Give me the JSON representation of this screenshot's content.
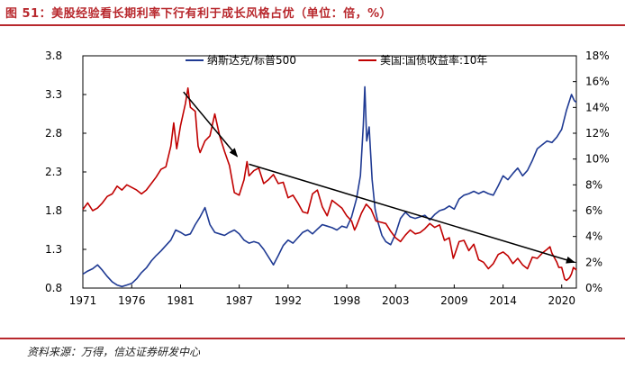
{
  "figure": {
    "title": "图 51：美股经验看长期利率下行有利于成长风格占优（单位：倍，%）",
    "source": "资料来源：万得，信达证券研发中心"
  },
  "colors": {
    "nasdaq": "#1f3a93",
    "treasury": "#c00000",
    "accent": "#b8282d",
    "arrow": "#000000"
  },
  "chart_data": {
    "type": "line",
    "title": "",
    "x_ticks": [
      "1971",
      "1976",
      "1981",
      "1987",
      "1992",
      "1998",
      "2003",
      "2009",
      "2014",
      "2020"
    ],
    "x_range": [
      1971,
      2021.5
    ],
    "y_left": {
      "range": [
        0.8,
        3.8
      ],
      "ticks": [
        "0.8",
        "1.3",
        "1.8",
        "2.3",
        "2.8",
        "3.3",
        "3.8"
      ]
    },
    "y_right": {
      "range": [
        0,
        18
      ],
      "ticks": [
        "0%",
        "2%",
        "4%",
        "6%",
        "8%",
        "10%",
        "12%",
        "14%",
        "16%",
        "18%"
      ]
    },
    "series": [
      {
        "name": "纳斯达克/标普500",
        "axis": "left",
        "points": [
          [
            1971.0,
            0.98
          ],
          [
            1971.5,
            1.02
          ],
          [
            1972.0,
            1.05
          ],
          [
            1972.5,
            1.1
          ],
          [
            1973.0,
            1.03
          ],
          [
            1973.5,
            0.95
          ],
          [
            1974.0,
            0.88
          ],
          [
            1974.5,
            0.84
          ],
          [
            1975.0,
            0.82
          ],
          [
            1975.5,
            0.84
          ],
          [
            1976.0,
            0.86
          ],
          [
            1976.5,
            0.92
          ],
          [
            1977.0,
            1.0
          ],
          [
            1977.5,
            1.06
          ],
          [
            1978.0,
            1.15
          ],
          [
            1978.5,
            1.22
          ],
          [
            1979.0,
            1.28
          ],
          [
            1979.5,
            1.35
          ],
          [
            1980.0,
            1.42
          ],
          [
            1980.5,
            1.55
          ],
          [
            1981.0,
            1.52
          ],
          [
            1981.5,
            1.48
          ],
          [
            1982.0,
            1.5
          ],
          [
            1982.5,
            1.62
          ],
          [
            1983.0,
            1.72
          ],
          [
            1983.5,
            1.84
          ],
          [
            1984.0,
            1.62
          ],
          [
            1984.5,
            1.52
          ],
          [
            1985.0,
            1.5
          ],
          [
            1985.5,
            1.48
          ],
          [
            1986.0,
            1.52
          ],
          [
            1986.5,
            1.55
          ],
          [
            1987.0,
            1.5
          ],
          [
            1987.5,
            1.42
          ],
          [
            1988.0,
            1.38
          ],
          [
            1988.5,
            1.4
          ],
          [
            1989.0,
            1.38
          ],
          [
            1989.5,
            1.3
          ],
          [
            1990.0,
            1.2
          ],
          [
            1990.5,
            1.1
          ],
          [
            1991.0,
            1.22
          ],
          [
            1991.5,
            1.35
          ],
          [
            1992.0,
            1.42
          ],
          [
            1992.5,
            1.38
          ],
          [
            1993.0,
            1.45
          ],
          [
            1993.5,
            1.52
          ],
          [
            1994.0,
            1.55
          ],
          [
            1994.5,
            1.5
          ],
          [
            1995.0,
            1.56
          ],
          [
            1995.5,
            1.62
          ],
          [
            1996.0,
            1.6
          ],
          [
            1996.5,
            1.58
          ],
          [
            1997.0,
            1.55
          ],
          [
            1997.5,
            1.6
          ],
          [
            1998.0,
            1.58
          ],
          [
            1998.5,
            1.72
          ],
          [
            1999.0,
            1.95
          ],
          [
            1999.4,
            2.25
          ],
          [
            1999.7,
            2.9
          ],
          [
            1999.85,
            3.4
          ],
          [
            2000.05,
            2.7
          ],
          [
            2000.3,
            2.88
          ],
          [
            2000.6,
            2.2
          ],
          [
            2000.9,
            1.82
          ],
          [
            2001.2,
            1.65
          ],
          [
            2001.6,
            1.48
          ],
          [
            2002.0,
            1.4
          ],
          [
            2002.5,
            1.36
          ],
          [
            2003.0,
            1.5
          ],
          [
            2003.5,
            1.7
          ],
          [
            2004.0,
            1.78
          ],
          [
            2004.5,
            1.72
          ],
          [
            2005.0,
            1.7
          ],
          [
            2005.5,
            1.72
          ],
          [
            2006.0,
            1.74
          ],
          [
            2006.5,
            1.68
          ],
          [
            2007.0,
            1.75
          ],
          [
            2007.5,
            1.8
          ],
          [
            2008.0,
            1.82
          ],
          [
            2008.5,
            1.86
          ],
          [
            2009.0,
            1.82
          ],
          [
            2009.5,
            1.95
          ],
          [
            2010.0,
            2.0
          ],
          [
            2010.5,
            2.02
          ],
          [
            2011.0,
            2.05
          ],
          [
            2011.5,
            2.02
          ],
          [
            2012.0,
            2.05
          ],
          [
            2012.5,
            2.02
          ],
          [
            2013.0,
            2.0
          ],
          [
            2013.5,
            2.12
          ],
          [
            2014.0,
            2.25
          ],
          [
            2014.5,
            2.2
          ],
          [
            2015.0,
            2.28
          ],
          [
            2015.5,
            2.35
          ],
          [
            2016.0,
            2.25
          ],
          [
            2016.5,
            2.32
          ],
          [
            2017.0,
            2.45
          ],
          [
            2017.5,
            2.6
          ],
          [
            2018.0,
            2.65
          ],
          [
            2018.5,
            2.7
          ],
          [
            2019.0,
            2.68
          ],
          [
            2019.5,
            2.75
          ],
          [
            2020.0,
            2.85
          ],
          [
            2020.5,
            3.1
          ],
          [
            2021.0,
            3.3
          ],
          [
            2021.3,
            3.22
          ],
          [
            2021.5,
            3.2
          ]
        ]
      },
      {
        "name": "美国:国债收益率:10年",
        "axis": "right",
        "points": [
          [
            1971.0,
            6.1
          ],
          [
            1971.5,
            6.6
          ],
          [
            1972.0,
            6.0
          ],
          [
            1972.5,
            6.2
          ],
          [
            1973.0,
            6.6
          ],
          [
            1973.5,
            7.1
          ],
          [
            1974.0,
            7.3
          ],
          [
            1974.5,
            7.9
          ],
          [
            1975.0,
            7.6
          ],
          [
            1975.5,
            8.0
          ],
          [
            1976.0,
            7.8
          ],
          [
            1976.5,
            7.6
          ],
          [
            1977.0,
            7.3
          ],
          [
            1977.5,
            7.6
          ],
          [
            1978.0,
            8.1
          ],
          [
            1978.5,
            8.6
          ],
          [
            1979.0,
            9.2
          ],
          [
            1979.5,
            9.4
          ],
          [
            1980.0,
            11.0
          ],
          [
            1980.3,
            12.8
          ],
          [
            1980.6,
            10.8
          ],
          [
            1981.0,
            12.6
          ],
          [
            1981.5,
            14.3
          ],
          [
            1981.75,
            15.5
          ],
          [
            1982.0,
            14.0
          ],
          [
            1982.5,
            13.7
          ],
          [
            1982.8,
            11.0
          ],
          [
            1983.0,
            10.5
          ],
          [
            1983.5,
            11.4
          ],
          [
            1984.0,
            11.8
          ],
          [
            1984.5,
            13.5
          ],
          [
            1985.0,
            11.8
          ],
          [
            1985.5,
            10.6
          ],
          [
            1986.0,
            9.5
          ],
          [
            1986.5,
            7.4
          ],
          [
            1987.0,
            7.2
          ],
          [
            1987.5,
            8.4
          ],
          [
            1987.8,
            9.8
          ],
          [
            1988.0,
            8.7
          ],
          [
            1988.5,
            9.1
          ],
          [
            1989.0,
            9.3
          ],
          [
            1989.5,
            8.1
          ],
          [
            1990.0,
            8.4
          ],
          [
            1990.5,
            8.8
          ],
          [
            1991.0,
            8.1
          ],
          [
            1991.5,
            8.2
          ],
          [
            1992.0,
            7.0
          ],
          [
            1992.5,
            7.2
          ],
          [
            1993.0,
            6.6
          ],
          [
            1993.5,
            5.9
          ],
          [
            1994.0,
            5.8
          ],
          [
            1994.5,
            7.3
          ],
          [
            1995.0,
            7.6
          ],
          [
            1995.5,
            6.3
          ],
          [
            1996.0,
            5.6
          ],
          [
            1996.5,
            6.8
          ],
          [
            1997.0,
            6.5
          ],
          [
            1997.5,
            6.2
          ],
          [
            1998.0,
            5.6
          ],
          [
            1998.5,
            5.2
          ],
          [
            1998.8,
            4.5
          ],
          [
            1999.0,
            4.8
          ],
          [
            1999.5,
            5.8
          ],
          [
            2000.0,
            6.5
          ],
          [
            2000.5,
            6.1
          ],
          [
            2001.0,
            5.2
          ],
          [
            2001.5,
            5.1
          ],
          [
            2002.0,
            5.0
          ],
          [
            2002.5,
            4.4
          ],
          [
            2003.0,
            3.9
          ],
          [
            2003.5,
            3.6
          ],
          [
            2004.0,
            4.1
          ],
          [
            2004.5,
            4.5
          ],
          [
            2005.0,
            4.2
          ],
          [
            2005.5,
            4.3
          ],
          [
            2006.0,
            4.6
          ],
          [
            2006.5,
            5.0
          ],
          [
            2007.0,
            4.7
          ],
          [
            2007.5,
            4.9
          ],
          [
            2008.0,
            3.7
          ],
          [
            2008.5,
            3.9
          ],
          [
            2008.9,
            2.3
          ],
          [
            2009.0,
            2.5
          ],
          [
            2009.5,
            3.6
          ],
          [
            2010.0,
            3.7
          ],
          [
            2010.5,
            2.9
          ],
          [
            2011.0,
            3.4
          ],
          [
            2011.5,
            2.2
          ],
          [
            2012.0,
            2.0
          ],
          [
            2012.5,
            1.5
          ],
          [
            2013.0,
            1.9
          ],
          [
            2013.5,
            2.6
          ],
          [
            2014.0,
            2.8
          ],
          [
            2014.5,
            2.5
          ],
          [
            2015.0,
            1.9
          ],
          [
            2015.5,
            2.3
          ],
          [
            2016.0,
            1.8
          ],
          [
            2016.5,
            1.5
          ],
          [
            2017.0,
            2.4
          ],
          [
            2017.5,
            2.3
          ],
          [
            2018.0,
            2.7
          ],
          [
            2018.5,
            3.0
          ],
          [
            2018.8,
            3.2
          ],
          [
            2019.0,
            2.7
          ],
          [
            2019.5,
            2.0
          ],
          [
            2019.7,
            1.6
          ],
          [
            2020.0,
            1.6
          ],
          [
            2020.3,
            0.7
          ],
          [
            2020.5,
            0.6
          ],
          [
            2020.8,
            0.8
          ],
          [
            2021.0,
            1.1
          ],
          [
            2021.2,
            1.6
          ],
          [
            2021.5,
            1.4
          ]
        ]
      }
    ],
    "annotations": [
      {
        "type": "arrow",
        "from": [
          1981.3,
          15.2
        ],
        "to": [
          1986.8,
          10.2
        ],
        "axis": "right"
      },
      {
        "type": "arrow",
        "from": [
          1988.0,
          9.6
        ],
        "to": [
          2021.3,
          2.0
        ],
        "axis": "right"
      }
    ],
    "legend": "top-center"
  }
}
